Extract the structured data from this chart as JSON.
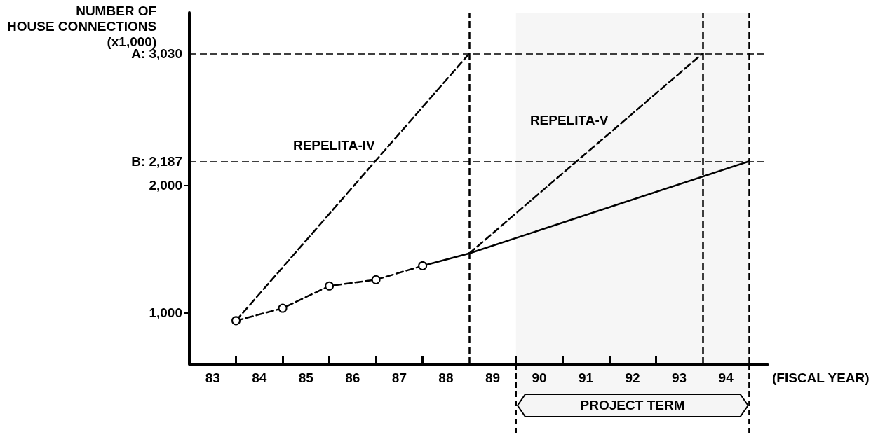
{
  "chart_data": {
    "type": "line",
    "ylabel": "NUMBER OF\nHOUSE CONNECTIONS\n(x1,000)",
    "xlabel": "(FISCAL YEAR)",
    "xlim": [
      83,
      95.4
    ],
    "xticks": [
      {
        "value": 83.5,
        "label": "83"
      },
      {
        "value": 84.5,
        "label": "84"
      },
      {
        "value": 85.5,
        "label": "85"
      },
      {
        "value": 86.5,
        "label": "86"
      },
      {
        "value": 87.5,
        "label": "87"
      },
      {
        "value": 88.5,
        "label": "88"
      },
      {
        "value": 89.5,
        "label": "89"
      },
      {
        "value": 90.5,
        "label": "90"
      },
      {
        "value": 91.5,
        "label": "91"
      },
      {
        "value": 92.5,
        "label": "92"
      },
      {
        "value": 93.5,
        "label": "93"
      },
      {
        "value": 94.5,
        "label": "94"
      },
      {
        "value": 84,
        "label": null
      },
      {
        "value": 85,
        "label": null
      },
      {
        "value": 86,
        "label": null
      },
      {
        "value": 87,
        "label": null
      },
      {
        "value": 88,
        "label": null
      },
      {
        "value": 90,
        "label": null
      },
      {
        "value": 91,
        "label": null
      },
      {
        "value": 92,
        "label": null
      },
      {
        "value": 93,
        "label": null
      }
    ],
    "ylim": [
      600,
      3350
    ],
    "yticks": [
      {
        "value": 1000,
        "label": "1,000"
      },
      {
        "value": 2000,
        "label": "2,000"
      }
    ],
    "grid": false,
    "legend": false,
    "series": [
      {
        "color": "#000000",
        "x": [
          84,
          85,
          86,
          87,
          88
        ],
        "values": [
          940,
          1038,
          1212,
          1261,
          1370
        ],
        "line_style": "dashed",
        "marker": "circle"
      },
      {
        "name": "REPELITA-IV",
        "color": "#000000",
        "x": [
          84,
          89
        ],
        "values": [
          940,
          3030
        ],
        "line_style": "dashed",
        "marker": "none"
      },
      {
        "name": "REPELITA-V",
        "color": "#000000",
        "x": [
          89,
          94
        ],
        "values": [
          1467,
          3030
        ],
        "line_style": "dashed",
        "marker": "none"
      },
      {
        "color": "#000000",
        "x": [
          88,
          89,
          95
        ],
        "values": [
          1370,
          1467,
          2187
        ],
        "line_style": "solid",
        "marker": "none"
      }
    ],
    "ref_lines": [
      {
        "axis": "y",
        "value": 3030,
        "label": "A: 3,030",
        "line_style": "dashed"
      },
      {
        "axis": "y",
        "value": 2187,
        "label": "B: 2,187",
        "line_style": "dashed"
      },
      {
        "axis": "x",
        "value": 89,
        "label": null,
        "line_style": "dashed"
      },
      {
        "axis": "x",
        "value": 94,
        "label": null,
        "line_style": "dashed"
      },
      {
        "axis": "x",
        "value": 95,
        "label": null,
        "line_style": "dashed"
      }
    ],
    "bands": [
      {
        "axis": "x",
        "from": 90,
        "to": 95,
        "label": "PROJECT TERM"
      }
    ]
  }
}
